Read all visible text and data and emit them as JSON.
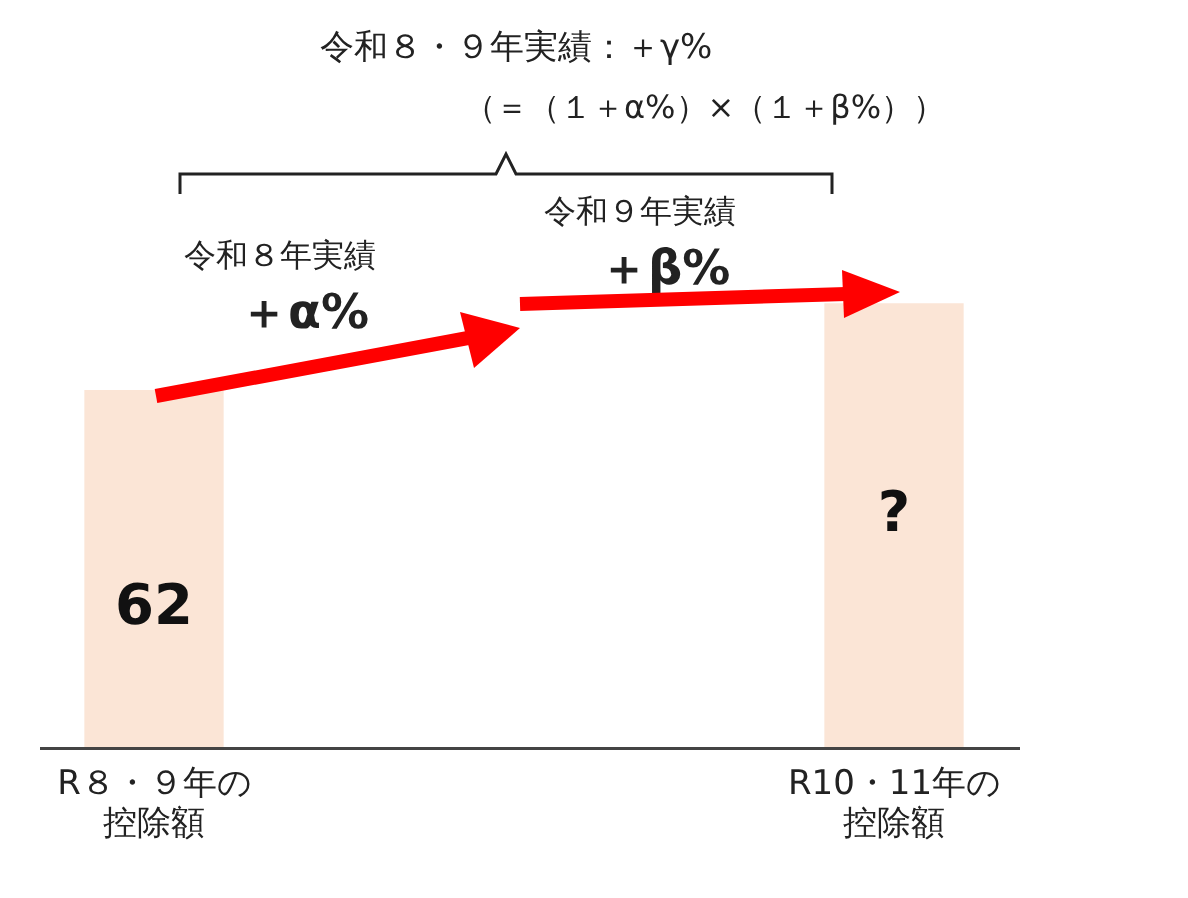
{
  "chart_data": {
    "type": "bar",
    "title": "令和８・９年実績：＋γ%",
    "subtitle": "（＝（１＋α%）×（１＋β%））",
    "categories": [
      "R８・９年の控除額",
      "R10・11年の控除額"
    ],
    "values": [
      62,
      77
    ],
    "value_labels": [
      "62",
      "?"
    ],
    "colors": [
      "#fbe5d6",
      "#fbe5d6"
    ],
    "annotations": [
      "令和８年実績",
      "＋α%",
      "令和９年実績",
      "＋β%"
    ],
    "grid": false,
    "legend": false
  }
}
